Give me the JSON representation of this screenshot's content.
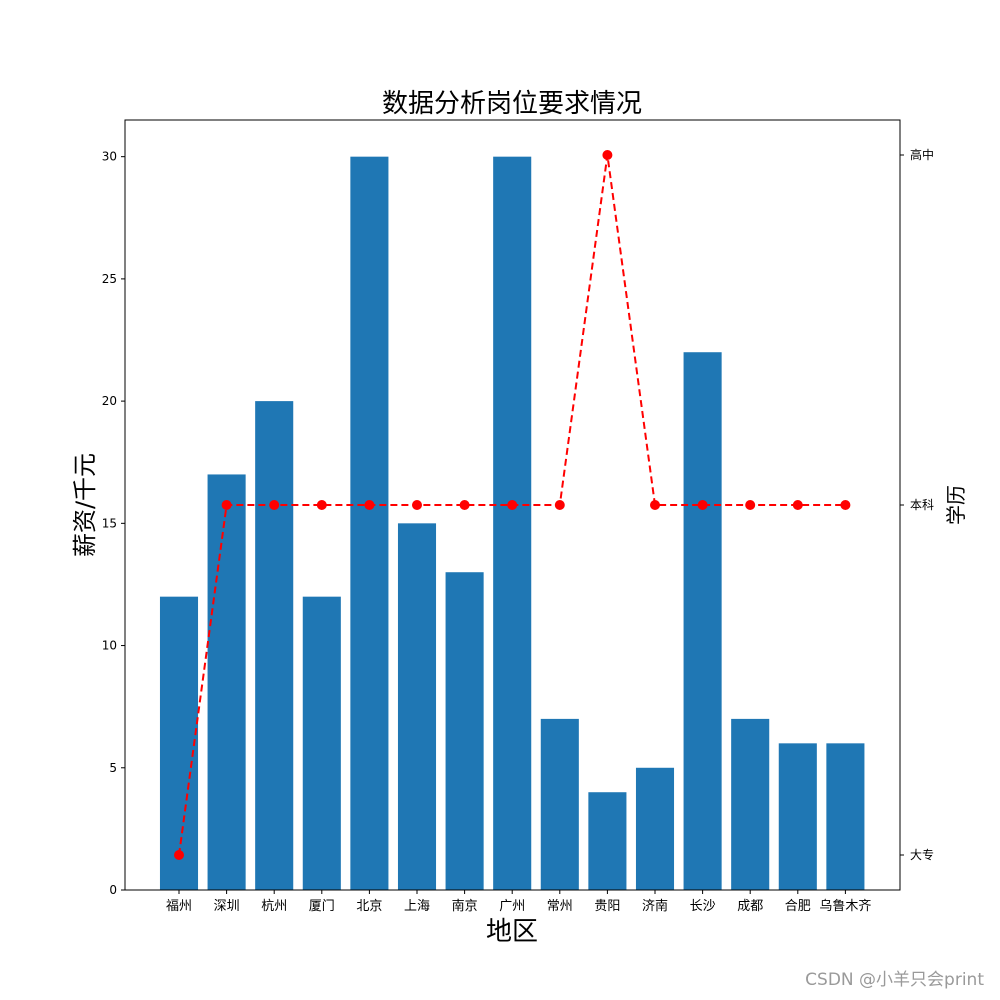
{
  "chart_data": {
    "type": "bar",
    "title": "数据分析岗位要求情况",
    "xlabel": "地区",
    "ylabel": "薪资/千元",
    "y2label": "学历",
    "categories": [
      "福州",
      "深圳",
      "杭州",
      "厦门",
      "北京",
      "上海",
      "南京",
      "广州",
      "常州",
      "贵阳",
      "济南",
      "长沙",
      "成都",
      "合肥",
      "乌鲁木齐"
    ],
    "series": [
      {
        "type": "bar",
        "color": "#1f77b4",
        "values": [
          12,
          17,
          20,
          12,
          30,
          15,
          13,
          30,
          7,
          4,
          5,
          22,
          7,
          6,
          6
        ]
      },
      {
        "type": "line",
        "axis": "right",
        "color": "#ff0000",
        "linestyle": "dashed",
        "marker": "circle",
        "values": [
          "大专",
          "本科",
          "本科",
          "本科",
          "本科",
          "本科",
          "本科",
          "本科",
          "本科",
          "高中",
          "本科",
          "本科",
          "本科",
          "本科",
          "本科"
        ]
      }
    ],
    "ylim": [
      0,
      31.5
    ],
    "yticks": [
      0,
      5,
      10,
      15,
      20,
      25,
      30
    ],
    "y2_categories": [
      "大专",
      "本科",
      "高中"
    ],
    "grid": false
  },
  "watermark": "CSDN @小羊只会print"
}
